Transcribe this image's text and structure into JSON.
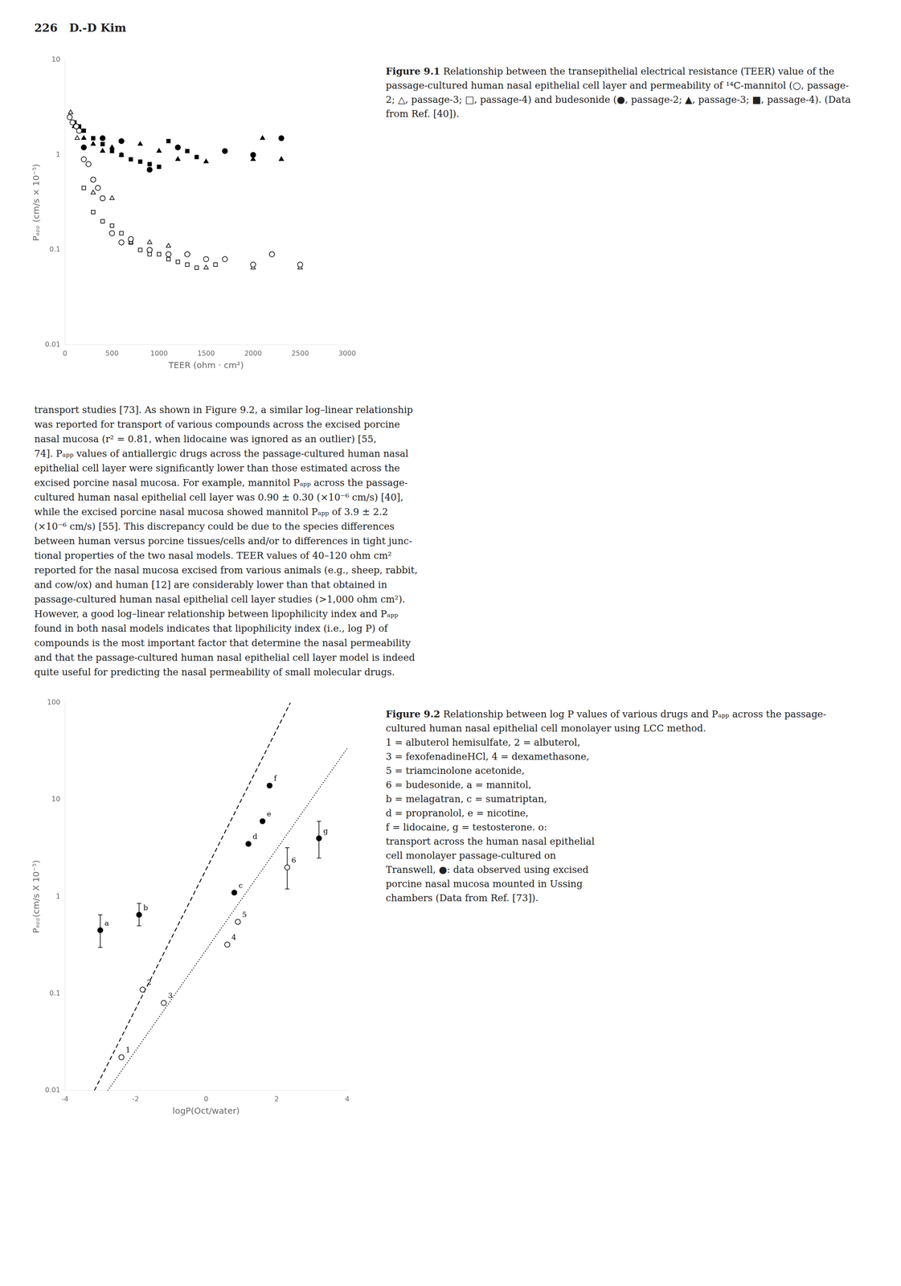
{
  "page_header": "226   D.-D Kim",
  "body_text": "transport studies [73]. As shown in Figure 9.2, a similar log–linear relationship\nwas reported for transport of various compounds across the excised porcine\nnasal mucosa (r² = 0.81, when lidocaine was ignored as an outlier) [55,\n74]. Pₐₚₚ values of antiallergic drugs across the passage-cultured human nasal\nepithelial cell layer were significantly lower than those estimated across the\nexcised porcine nasal mucosa. For example, mannitol Pₐₚₚ across the passage-\ncultured human nasal epithelial cell layer was 0.90 ± 0.30 (×10⁻⁶ cm/s) [40],\nwhile the excised porcine nasal mucosa showed mannitol Pₐₚₚ of 3.9 ± 2.2\n(×10⁻⁶ cm/s) [55]. This discrepancy could be due to the species differences\nbetween human versus porcine tissues/cells and/or to differences in tight junc-\ntional properties of the two nasal models. TEER values of 40–120 ohm cm²\nreported for the nasal mucosa excised from various animals (e.g., sheep, rabbit,\nand cow/ox) and human [12] are considerably lower than that obtained in\npassage-cultured human nasal epithelial cell layer studies (>1,000 ohm cm²).\nHowever, a good log–linear relationship between lipophilicity index and Pₐₚₚ\nfound in both nasal models indicates that lipophilicity index (i.e., log P) of\ncompounds is the most important factor that determine the nasal permeability\nand that the passage-cultured human nasal epithelial cell layer model is indeed\nquite useful for predicting the nasal permeability of small molecular drugs.",
  "chart_data": [
    {
      "type": "scatter",
      "caption_label": "Figure 9.1",
      "caption": "Relationship between the transepithelial electrical resistance (TEER) value of the passage-cultured human nasal epithelial cell layer and permeability of ¹⁴C-mannitol (○, passage-2; △, passage-3; □, passage-4) and budesonide (●, passage-2; ▲, passage-3; ■, passage-4). (Data from Ref. [40]).",
      "xlabel": "TEER (ohm · cm²)",
      "ylabel": "Pₐₚₚ (cm/s × 10⁻⁵)",
      "log": "y",
      "grid": false,
      "xlim": [
        0,
        3000
      ],
      "ylim": [
        0.01,
        10
      ],
      "xticks": [
        0,
        500,
        1000,
        1500,
        2000,
        2500,
        3000
      ],
      "yticks": [
        0.01,
        0.1,
        1,
        10
      ],
      "series": [
        {
          "marker": "circle_open",
          "color": "black",
          "x": [
            50,
            80,
            120,
            150,
            200,
            250,
            300,
            350,
            400,
            500,
            600,
            700,
            900,
            1100,
            1300,
            1500,
            1700,
            2000,
            2200,
            2500
          ],
          "values": [
            2.5,
            2.2,
            2.0,
            1.8,
            0.9,
            0.8,
            0.55,
            0.45,
            0.35,
            0.15,
            0.12,
            0.13,
            0.1,
            0.09,
            0.09,
            0.08,
            0.08,
            0.07,
            0.09,
            0.07
          ]
        },
        {
          "marker": "triangle_open",
          "color": "black",
          "x": [
            60,
            130,
            300,
            500,
            700,
            900,
            1100,
            1300,
            1500,
            2000,
            2500
          ],
          "values": [
            2.8,
            1.5,
            0.4,
            0.35,
            0.12,
            0.12,
            0.11,
            0.09,
            0.065,
            0.065,
            0.065
          ]
        },
        {
          "marker": "square_open",
          "color": "black",
          "x": [
            200,
            300,
            400,
            500,
            600,
            700,
            800,
            900,
            1000,
            1100,
            1200,
            1300,
            1400,
            1600
          ],
          "values": [
            0.45,
            0.25,
            0.2,
            0.18,
            0.15,
            0.12,
            0.1,
            0.09,
            0.09,
            0.08,
            0.075,
            0.07,
            0.065,
            0.07
          ]
        },
        {
          "marker": "circle_filled",
          "color": "black",
          "x": [
            200,
            400,
            600,
            900,
            1200,
            1700,
            2000,
            2300
          ],
          "values": [
            1.2,
            1.5,
            1.4,
            0.7,
            1.2,
            1.1,
            1.0,
            1.5
          ]
        },
        {
          "marker": "triangle_filled",
          "color": "black",
          "x": [
            100,
            150,
            200,
            300,
            400,
            500,
            600,
            800,
            1000,
            1200,
            1500,
            2000,
            2100,
            2300
          ],
          "values": [
            2.0,
            1.8,
            1.5,
            1.3,
            1.1,
            1.2,
            1.0,
            1.3,
            1.1,
            0.9,
            0.85,
            0.9,
            1.5,
            0.9
          ]
        },
        {
          "marker": "square_filled",
          "color": "black",
          "x": [
            100,
            150,
            200,
            300,
            400,
            500,
            600,
            700,
            800,
            900,
            1000,
            1100,
            1200,
            1300,
            1400
          ],
          "values": [
            2.2,
            2.0,
            1.8,
            1.5,
            1.3,
            1.1,
            1.0,
            0.9,
            0.85,
            0.8,
            0.75,
            1.4,
            1.2,
            1.1,
            0.95
          ]
        }
      ]
    },
    {
      "type": "scatter",
      "caption_label": "Figure 9.2",
      "caption": "Relationship between log P values of various drugs and Pₐₚₚ across the passage-cultured human nasal epithelial cell monolayer using LCC method.\n1 = albuterol hemisulfate, 2 = albuterol,\n3 = fexofenadineHCl, 4 = dexamethasone,\n5 = triamcinolone acetonide,\n6 = budesonide, a = mannitol,\nb = melagatran, c = sumatriptan,\nd = propranolol, e = nicotine,\nf = lidocaine, g = testosterone. o:\ntransport across the human nasal epithelial\ncell monolayer passage-cultured on\nTranswell, ●: data observed using excised\nporcine nasal mucosa mounted in Ussing\nchambers (Data from Ref. [73]).",
      "xlabel": "logP(Oct/water)",
      "ylabel": "Pₐₚₚ(cm/s X 10⁻⁵)",
      "log": "y",
      "grid": false,
      "xlim": [
        -4,
        4
      ],
      "ylim": [
        0.01,
        100
      ],
      "xticks": [
        -4,
        -2,
        0,
        2,
        4
      ],
      "yticks": [
        0.01,
        0.1,
        1,
        10,
        100
      ],
      "series": [
        {
          "type": "line",
          "line_style": "dashed",
          "color": "black",
          "x": [
            -3.166667,
            2.388889
          ],
          "values": [
            0.01,
            100
          ]
        },
        {
          "type": "line",
          "line_style": "dotted",
          "color": "black",
          "x": [
            -2.788462,
            4
          ],
          "values": [
            0.01,
            33.88442
          ]
        },
        {
          "marker": "circle_filled",
          "color": "black",
          "x": [
            -3.0,
            -1.9,
            0.8,
            1.2,
            1.6,
            1.8,
            3.2
          ],
          "values": [
            0.45,
            0.65,
            1.1,
            3.5,
            6.0,
            14.0,
            4.0
          ],
          "error_low": [
            0.15,
            0.15,
            null,
            null,
            null,
            null,
            1.5
          ],
          "error_high": [
            0.2,
            0.2,
            null,
            null,
            null,
            null,
            2.0
          ],
          "labels": [
            "a",
            "b",
            "c",
            "d",
            "e",
            "f",
            "g"
          ]
        },
        {
          "marker": "circle_open",
          "color": "black",
          "x": [
            -2.4,
            -1.8,
            -1.2,
            0.6,
            0.9,
            2.3
          ],
          "values": [
            0.022,
            0.11,
            0.08,
            0.32,
            0.55,
            2.0
          ],
          "error_low": [
            null,
            null,
            null,
            null,
            null,
            0.8
          ],
          "error_high": [
            null,
            null,
            null,
            null,
            null,
            1.2
          ],
          "labels": [
            "1",
            "2",
            "3",
            "4",
            "5",
            "6"
          ]
        }
      ]
    }
  ]
}
